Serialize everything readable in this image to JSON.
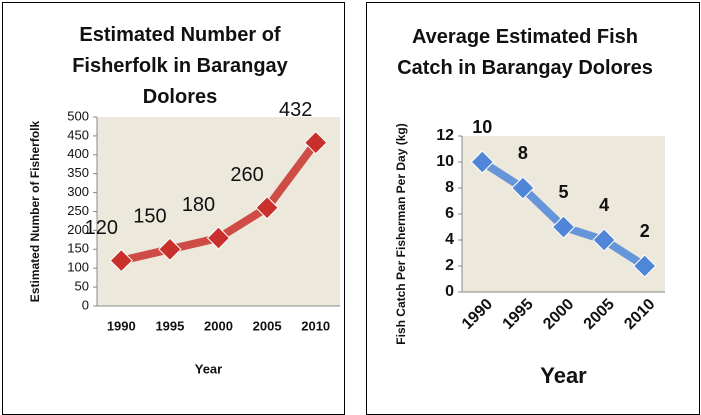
{
  "chart_data": [
    {
      "type": "line",
      "title": "Estimated Number of Fisherfolk in Barangay Dolores",
      "x_label": "Year",
      "y_label": "Estimated Number of Fisherfolk",
      "categories": [
        "1990",
        "1995",
        "2000",
        "2005",
        "2010"
      ],
      "values": [
        120,
        150,
        180,
        260,
        432
      ],
      "color": "#c9302c",
      "ylim": [
        0,
        500
      ],
      "yticks": [
        0,
        50,
        100,
        150,
        200,
        250,
        300,
        350,
        400,
        450,
        500
      ],
      "grid": false
    },
    {
      "type": "line",
      "title": "Average Estimated Fish Catch in Barangay Dolores",
      "x_label": "Year",
      "y_label": "Fish Catch Per Fisherman Per Day (kg)",
      "categories": [
        "1990",
        "1995",
        "2000",
        "2005",
        "2010"
      ],
      "values": [
        10,
        8,
        5,
        4,
        2
      ],
      "color": "#4f86d8",
      "ylim": [
        0,
        12
      ],
      "yticks": [
        0,
        2,
        4,
        6,
        8,
        10,
        12
      ],
      "grid": false
    }
  ]
}
